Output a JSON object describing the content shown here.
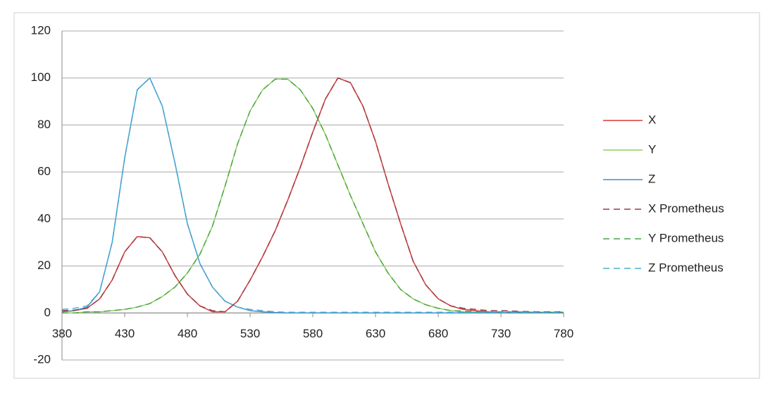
{
  "chart_data": {
    "type": "line",
    "x": [
      380,
      390,
      400,
      410,
      420,
      430,
      440,
      450,
      460,
      470,
      480,
      490,
      500,
      510,
      520,
      530,
      540,
      550,
      560,
      570,
      580,
      590,
      600,
      610,
      620,
      630,
      640,
      650,
      660,
      670,
      680,
      690,
      700,
      710,
      720,
      730,
      740,
      750,
      760,
      770,
      780
    ],
    "xlim": [
      380,
      780
    ],
    "xticks": [
      380,
      430,
      480,
      530,
      580,
      630,
      680,
      730,
      780
    ],
    "ylim": [
      -20,
      120
    ],
    "yticks": [
      -20,
      0,
      20,
      40,
      60,
      80,
      100,
      120
    ],
    "grid": true,
    "legend": "right",
    "series": [
      {
        "name": "X",
        "color": "#d93a34",
        "dash": false,
        "values": [
          0.5,
          1,
          2,
          6,
          14,
          26,
          32.5,
          32,
          26,
          16,
          8,
          3,
          0.5,
          0.5,
          5,
          14,
          24,
          35,
          48,
          62,
          77,
          91,
          100,
          98,
          88,
          73,
          55,
          38,
          22,
          12,
          6,
          3,
          1.5,
          1,
          0.5,
          0.3,
          0.2,
          0.1,
          0,
          0,
          0
        ]
      },
      {
        "name": "Y",
        "color": "#8fcf5a",
        "dash": false,
        "values": [
          0,
          0,
          0.5,
          0.5,
          1,
          1.5,
          2.5,
          4,
          7,
          11,
          17,
          25,
          37,
          54,
          72,
          86,
          95,
          99.5,
          99.5,
          95,
          87,
          76,
          63,
          50,
          38,
          26,
          17,
          10,
          6,
          3.5,
          2,
          1,
          0.5,
          0.3,
          0.2,
          0.1,
          0,
          0,
          0,
          0,
          0
        ]
      },
      {
        "name": "Z",
        "color": "#3f8fd2",
        "dash": false,
        "values": [
          0.5,
          1,
          2.5,
          9,
          30,
          66,
          95,
          100,
          88,
          64,
          38,
          21,
          11,
          5,
          2.5,
          1,
          0.5,
          0.2,
          0,
          0,
          0,
          0,
          0,
          0,
          0,
          0,
          0,
          0,
          0,
          0,
          0,
          0,
          0,
          0,
          0,
          0,
          0,
          0,
          0,
          0,
          0
        ]
      },
      {
        "name": "X Prometheus",
        "color": "#9c3a46",
        "dash": true,
        "values": [
          1,
          1.2,
          2,
          6,
          14,
          26,
          32.5,
          32,
          26,
          16,
          8,
          3,
          1,
          0.5,
          5,
          14,
          24,
          35,
          48,
          62,
          77,
          91,
          100,
          98,
          88,
          73,
          55,
          38,
          22,
          12,
          6,
          3,
          2,
          1.5,
          1,
          1,
          0.8,
          0.6,
          0.5,
          0.5,
          0.5
        ]
      },
      {
        "name": "Y Prometheus",
        "color": "#4aa64a",
        "dash": true,
        "values": [
          0,
          0,
          0.5,
          0.5,
          1,
          1.5,
          2.5,
          4,
          7,
          11,
          17,
          25,
          37,
          54,
          72,
          86,
          95,
          99.5,
          99.5,
          95,
          87,
          76,
          63,
          50,
          38,
          26,
          17,
          10,
          6,
          3.5,
          2,
          1,
          0.8,
          0.6,
          0.5,
          0.5,
          0.5,
          0.4,
          0.3,
          0.3,
          0.3
        ]
      },
      {
        "name": "Z Prometheus",
        "color": "#4bb0cf",
        "dash": true,
        "values": [
          1.5,
          2,
          3,
          9,
          30,
          66,
          95,
          100,
          88,
          64,
          38,
          21,
          11,
          5,
          2.5,
          1.5,
          1,
          0.5,
          0.3,
          0.3,
          0.3,
          0.3,
          0.3,
          0.3,
          0.3,
          0.3,
          0.3,
          0.3,
          0.3,
          0.3,
          0.3,
          0.3,
          0.3,
          0.3,
          0.3,
          0.3,
          0.3,
          0.3,
          0.3,
          0.3,
          0.3
        ]
      }
    ]
  }
}
